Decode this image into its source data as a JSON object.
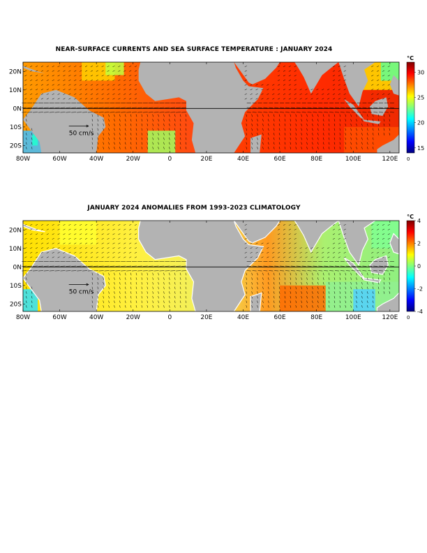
{
  "chart_data": [
    {
      "type": "heatmap",
      "title": "NEAR-SURFACE CURRENTS AND SEA SURFACE TEMPERATURE : JANUARY 2024",
      "xlabel": "",
      "ylabel": "",
      "x_ticks": [
        "80W",
        "60W",
        "40W",
        "20W",
        "0",
        "20E",
        "40E",
        "60E",
        "80E",
        "100E",
        "120E"
      ],
      "x_tick_values": [
        -80,
        -60,
        -40,
        -20,
        0,
        20,
        40,
        60,
        80,
        100,
        120
      ],
      "y_ticks": [
        "20N",
        "10N",
        "0N",
        "10S",
        "20S"
      ],
      "y_tick_values": [
        20,
        10,
        0,
        -10,
        -20
      ],
      "xlim": [
        -80,
        125
      ],
      "ylim": [
        -24,
        25
      ],
      "colorbar": {
        "unit": "°C",
        "ticks": [
          15,
          20,
          25,
          30
        ],
        "range": [
          14,
          32
        ],
        "colors": [
          "#00007f",
          "#0000ff",
          "#0080ff",
          "#00ffff",
          "#80ff80",
          "#ffff00",
          "#ff8000",
          "#ff0000",
          "#7f0000"
        ],
        "bottom_label": "0"
      },
      "reference_arrow_label": "50 cm/s",
      "equator_line": true,
      "land_color": "#b3b3b3",
      "series": []
    },
    {
      "type": "heatmap",
      "title": "JANUARY 2024 ANOMALIES FROM 1993-2023 CLIMATOLOGY",
      "xlabel": "",
      "ylabel": "",
      "x_ticks": [
        "80W",
        "60W",
        "40W",
        "20W",
        "0",
        "20E",
        "40E",
        "60E",
        "80E",
        "100E",
        "120E"
      ],
      "x_tick_values": [
        -80,
        -60,
        -40,
        -20,
        0,
        20,
        40,
        60,
        80,
        100,
        120
      ],
      "y_ticks": [
        "20N",
        "10N",
        "0N",
        "10S",
        "20S"
      ],
      "y_tick_values": [
        20,
        10,
        0,
        -10,
        -20
      ],
      "xlim": [
        -80,
        125
      ],
      "ylim": [
        -24,
        25
      ],
      "colorbar": {
        "unit": "°C",
        "ticks": [
          4,
          2,
          0,
          -2,
          -4
        ],
        "range": [
          -4,
          4
        ],
        "colors": [
          "#00007f",
          "#0000ff",
          "#0080ff",
          "#00ffff",
          "#80ff80",
          "#ffff00",
          "#ff8000",
          "#ff0000",
          "#7f0000"
        ],
        "bottom_label": "0"
      },
      "reference_arrow_label": "50 cm/s",
      "equator_line": true,
      "land_color": "#b3b3b3",
      "series": []
    }
  ]
}
